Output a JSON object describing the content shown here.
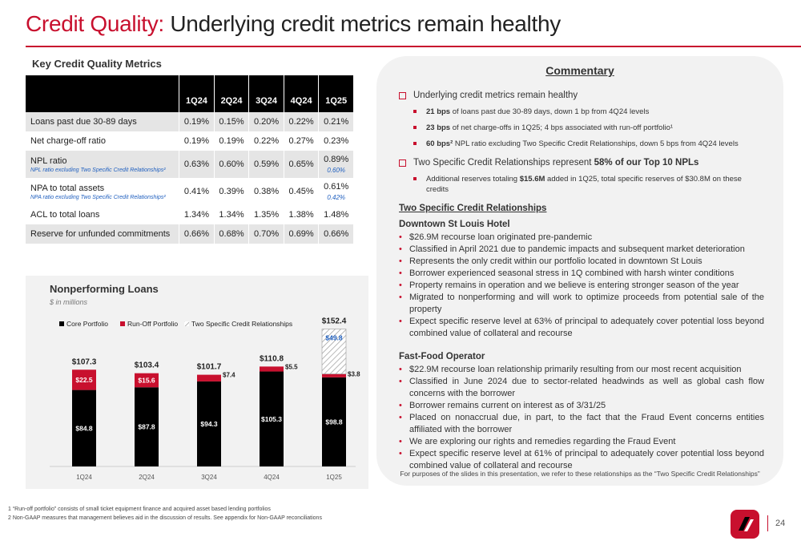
{
  "header": {
    "title_accent": "Credit Quality:",
    "title_rest": "Underlying credit metrics remain healthy"
  },
  "table": {
    "title": "Key Credit Quality Metrics",
    "columns": [
      "1Q24",
      "2Q24",
      "3Q24",
      "4Q24",
      "1Q25"
    ],
    "rows": [
      {
        "label": "Loans past due 30-89 days",
        "values": [
          "0.19%",
          "0.15%",
          "0.20%",
          "0.22%",
          "0.21%"
        ]
      },
      {
        "label": "Net charge-off ratio",
        "values": [
          "0.19%",
          "0.19%",
          "0.22%",
          "0.27%",
          "0.23%"
        ]
      },
      {
        "label": "NPL ratio",
        "sublabel": "NPL ratio excluding Two Specific Credit Relationships²",
        "values": [
          "0.63%",
          "0.60%",
          "0.59%",
          "0.65%",
          "0.89%"
        ],
        "subvalue": "0.60%"
      },
      {
        "label": "NPA to total assets",
        "sublabel": "NPA ratio excluding Two Specific Credit Relationships²",
        "values": [
          "0.41%",
          "0.39%",
          "0.38%",
          "0.45%",
          "0.61%"
        ],
        "subvalue": "0.42%"
      },
      {
        "label": "ACL to total loans",
        "values": [
          "1.34%",
          "1.34%",
          "1.35%",
          "1.38%",
          "1.48%"
        ]
      },
      {
        "label": "Reserve for unfunded commitments",
        "values": [
          "0.66%",
          "0.68%",
          "0.70%",
          "0.69%",
          "0.66%"
        ]
      }
    ]
  },
  "chart": {
    "title": "Nonperforming Loans",
    "subtitle": "$ in millions"
  },
  "chart_data": {
    "type": "bar",
    "stacked": true,
    "categories": [
      "1Q24",
      "2Q24",
      "3Q24",
      "4Q24",
      "1Q25"
    ],
    "series": [
      {
        "name": "Core Portfolio",
        "values": [
          84.8,
          87.8,
          94.3,
          105.3,
          98.8
        ],
        "labels": [
          "$84.8",
          "$87.8",
          "$94.3",
          "$105.3",
          "$98.8"
        ],
        "color": "#000000"
      },
      {
        "name": "Run-Off Portfolio",
        "values": [
          22.5,
          15.6,
          7.4,
          5.5,
          3.8
        ],
        "labels": [
          "$22.5",
          "$15.6",
          "$7.4",
          "$5.5",
          "$3.8"
        ],
        "color": "#c8102e"
      },
      {
        "name": "Two Specific Credit Relationships",
        "values": [
          0,
          0,
          0,
          0,
          49.8
        ],
        "labels": [
          "",
          "",
          "",
          "",
          "$49.8"
        ],
        "color": "hatched"
      }
    ],
    "totals": [
      "$107.3",
      "$103.4",
      "$101.7",
      "$110.8",
      "$152.4"
    ],
    "ylim": [
      0,
      160
    ],
    "legend": "top-left",
    "grid": false
  },
  "commentary": {
    "title": "Commentary",
    "points": [
      {
        "text": "Underlying credit metrics remain healthy",
        "subs": [
          {
            "bold": "21 bps",
            "text": " of loans past due 30-89 days, down 1 bp from 4Q24 levels"
          },
          {
            "bold": "23 bps",
            "text": " of net charge-offs in 1Q25; 4 bps associated with run-off portfolio¹"
          },
          {
            "bold": "60 bps²",
            "text": " NPL ratio excluding Two Specific Credit Relationships, down 5 bps from 4Q24 levels"
          }
        ]
      },
      {
        "text": "Two Specific Credit Relationships represent ",
        "text_bold": "58% of our Top 10 NPLs",
        "subs": [
          {
            "prefix": "Additional reserves totaling ",
            "bold": "$15.6M",
            "text": " added in 1Q25, total specific reserves of $30.8M on these credits"
          }
        ]
      }
    ],
    "section_title": "Two Specific Credit Relationships",
    "groups": [
      {
        "title": "Downtown St Louis Hotel",
        "bullets": [
          "$26.9M recourse loan originated pre-pandemic",
          "Classified in April 2021 due to pandemic impacts and subsequent market deterioration",
          "Represents the only credit within our portfolio located in downtown St Louis",
          "Borrower experienced seasonal stress in 1Q combined with harsh winter conditions",
          "Property remains in operation and we believe is entering stronger season of the year",
          "Migrated to nonperforming and will work to optimize proceeds from potential sale of the property",
          "Expect specific reserve level at 63% of principal to adequately cover potential loss beyond combined value of collateral and recourse"
        ]
      },
      {
        "title": "Fast-Food Operator",
        "bullets": [
          "$22.9M recourse loan relationship primarily resulting from our most recent acquisition",
          "Classified in June 2024 due to sector-related headwinds as well as global cash flow concerns with the borrower",
          "Borrower remains current on interest as of 3/31/25",
          "Placed on nonaccrual due, in part, to the fact that the Fraud Event concerns entities affiliated with the borrower",
          "We are exploring our rights and remedies regarding the Fraud Event",
          "Expect specific reserve level at 61% of principal to adequately cover potential loss beyond combined value of collateral and recourse"
        ]
      }
    ],
    "footer": "For purposes of the slides in this presentation, we refer to these relationships as the “Two Specific Credit Relationships”"
  },
  "footnotes": [
    "1  “Run-off portfolio” consists of small ticket equipment finance and acquired asset based lending portfolios",
    "2  Non-GAAP measures that management believes aid in the discussion of results. See appendix for Non-GAAP reconciliations"
  ],
  "page_number": "24",
  "colors": {
    "accent": "#c8102e",
    "header": "#000000",
    "panel": "#f2f2f2",
    "note_blue": "#1f5fbf"
  },
  "icons": {
    "logo": "company-logo",
    "checkbox": "square-bullet"
  }
}
